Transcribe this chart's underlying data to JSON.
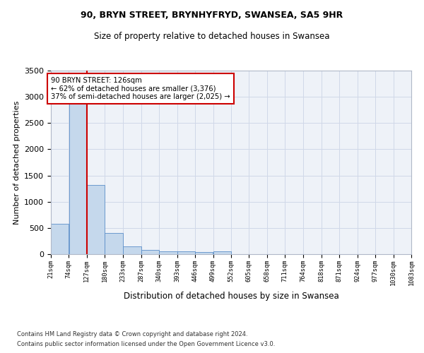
{
  "title1": "90, BRYN STREET, BRYNHYFRYD, SWANSEA, SA5 9HR",
  "title2": "Size of property relative to detached houses in Swansea",
  "xlabel": "Distribution of detached houses by size in Swansea",
  "ylabel": "Number of detached properties",
  "footnote1": "Contains HM Land Registry data © Crown copyright and database right 2024.",
  "footnote2": "Contains public sector information licensed under the Open Government Licence v3.0.",
  "bar_color": "#c5d8ec",
  "bar_edge_color": "#5b8fc9",
  "grid_color": "#d0d8e8",
  "background_color": "#eef2f8",
  "subject_line_color": "#cc0000",
  "annotation_text": "90 BRYN STREET: 126sqm\n← 62% of detached houses are smaller (3,376)\n37% of semi-detached houses are larger (2,025) →",
  "bin_edges": [
    21,
    74,
    127,
    180,
    233,
    287,
    340,
    393,
    446,
    499,
    552,
    605,
    658,
    711,
    764,
    818,
    871,
    924,
    977,
    1030,
    1083
  ],
  "bin_heights": [
    580,
    2920,
    1320,
    410,
    150,
    80,
    55,
    50,
    45,
    55,
    0,
    0,
    0,
    0,
    0,
    0,
    0,
    0,
    0,
    0
  ],
  "ylim": [
    0,
    3500
  ],
  "yticks": [
    0,
    500,
    1000,
    1500,
    2000,
    2500,
    3000,
    3500
  ],
  "tick_labels": [
    "21sqm",
    "74sqm",
    "127sqm",
    "180sqm",
    "233sqm",
    "287sqm",
    "340sqm",
    "393sqm",
    "446sqm",
    "499sqm",
    "552sqm",
    "605sqm",
    "658sqm",
    "711sqm",
    "764sqm",
    "818sqm",
    "871sqm",
    "924sqm",
    "977sqm",
    "1030sqm",
    "1083sqm"
  ]
}
